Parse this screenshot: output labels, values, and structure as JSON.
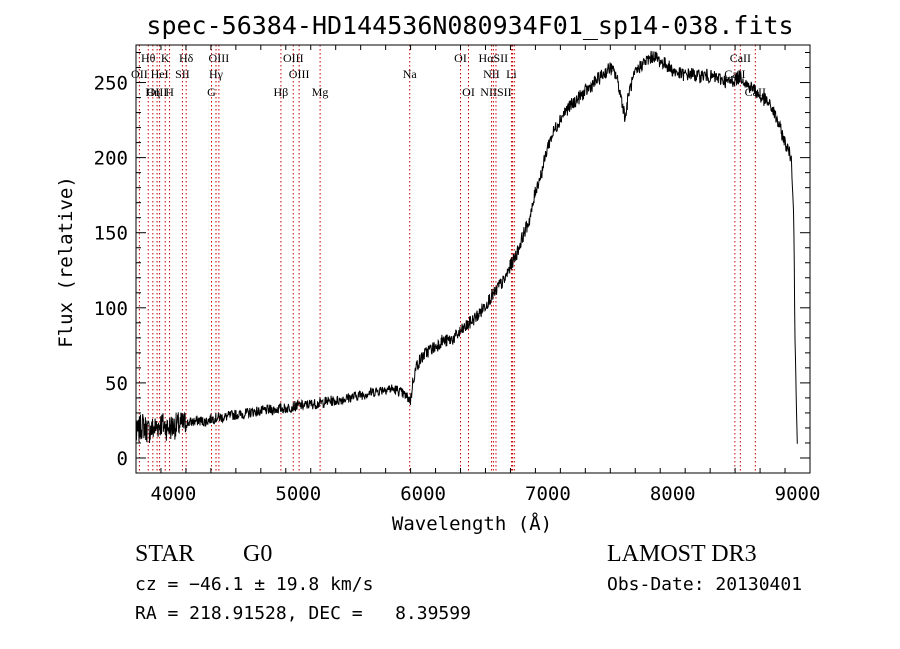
{
  "chart_data": {
    "type": "line",
    "title": "spec-56384-HD144536N080934F01_sp14-038.fits",
    "xlabel": "Wavelength (Å)",
    "ylabel": "Flux (relative)",
    "xlim": [
      3700,
      9100
    ],
    "ylim": [
      -10,
      275
    ],
    "xticks": [
      4000,
      5000,
      6000,
      7000,
      8000,
      9000
    ],
    "yticks": [
      0,
      50,
      100,
      150,
      200,
      250
    ],
    "xtick_labels": [
      "4000",
      "5000",
      "6000",
      "7000",
      "8000",
      "9000"
    ],
    "ytick_labels": [
      "0",
      "50",
      "100",
      "150",
      "200",
      "250"
    ],
    "series": [
      {
        "name": "spectrum",
        "x": [
          3700,
          3750,
          3800,
          3850,
          3900,
          3950,
          4000,
          4050,
          4100,
          4150,
          4200,
          4250,
          4300,
          4350,
          4400,
          4450,
          4500,
          4550,
          4600,
          4650,
          4700,
          4750,
          4800,
          4850,
          4900,
          4950,
          5000,
          5050,
          5100,
          5150,
          5200,
          5250,
          5300,
          5350,
          5400,
          5450,
          5500,
          5550,
          5600,
          5650,
          5700,
          5750,
          5800,
          5850,
          5880,
          5900,
          5920,
          5950,
          6000,
          6050,
          6100,
          6150,
          6200,
          6250,
          6300,
          6350,
          6400,
          6450,
          6500,
          6550,
          6580,
          6600,
          6650,
          6700,
          6750,
          6800,
          6850,
          6880,
          6900,
          6950,
          7000,
          7050,
          7100,
          7150,
          7200,
          7250,
          7300,
          7350,
          7400,
          7450,
          7500,
          7550,
          7600,
          7620,
          7650,
          7700,
          7750,
          7800,
          7850,
          7900,
          7950,
          8000,
          8050,
          8100,
          8150,
          8200,
          8250,
          8300,
          8350,
          8400,
          8450,
          8500,
          8550,
          8600,
          8650,
          8700,
          8750,
          8800,
          8850,
          8900,
          8950,
          8970,
          8980,
          9000
        ],
        "y": [
          15,
          22,
          18,
          20,
          23,
          20,
          21,
          22,
          23,
          24,
          25,
          24,
          26,
          27,
          27,
          28,
          29,
          29,
          30,
          31,
          31,
          32,
          32,
          33,
          33,
          34,
          35,
          35,
          36,
          36,
          37,
          38,
          38,
          39,
          40,
          41,
          42,
          43,
          44,
          45,
          46,
          46,
          45,
          42,
          40,
          38,
          52,
          62,
          68,
          72,
          74,
          78,
          78,
          80,
          84,
          88,
          92,
          96,
          102,
          108,
          110,
          114,
          118,
          128,
          136,
          148,
          158,
          168,
          178,
          190,
          208,
          218,
          226,
          232,
          236,
          240,
          244,
          248,
          252,
          256,
          260,
          254,
          235,
          226,
          244,
          256,
          262,
          265,
          268,
          264,
          262,
          258,
          256,
          255,
          256,
          254,
          255,
          254,
          253,
          252,
          250,
          252,
          254,
          248,
          246,
          240,
          238,
          232,
          222,
          210,
          200,
          160,
          80,
          0
        ]
      }
    ],
    "line_labels": [
      {
        "text": "Hθ",
        "wavelength": 3798
      },
      {
        "text": "K",
        "wavelength": 3934
      },
      {
        "text": "Hδ",
        "wavelength": 4102
      },
      {
        "text": "OIII",
        "wavelength": 4364
      },
      {
        "text": "OIII",
        "wavelength": 4960
      },
      {
        "text": "OI",
        "wavelength": 6300
      },
      {
        "text": "HαSII",
        "wavelength": 6563
      },
      {
        "text": "CaII",
        "wavelength": 8542
      },
      {
        "text": "OII",
        "wavelength": 3727
      },
      {
        "text": "HeI",
        "wavelength": 3889
      },
      {
        "text": "SII",
        "wavelength": 4072
      },
      {
        "text": "Hγ",
        "wavelength": 4341
      },
      {
        "text": "OIII",
        "wavelength": 5007
      },
      {
        "text": "Na",
        "wavelength": 5893
      },
      {
        "text": "NII",
        "wavelength": 6548
      },
      {
        "text": "Li",
        "wavelength": 6708
      },
      {
        "text": "CaII",
        "wavelength": 8498
      },
      {
        "text": "OIII",
        "wavelength": 3869
      },
      {
        "text": "Hη",
        "wavelength": 3835
      },
      {
        "text": "H",
        "wavelength": 3969
      },
      {
        "text": "G",
        "wavelength": 4305
      },
      {
        "text": "Hβ",
        "wavelength": 4861
      },
      {
        "text": "Mg",
        "wavelength": 5175
      },
      {
        "text": "OI",
        "wavelength": 6364
      },
      {
        "text": "NIISII",
        "wavelength": 6584
      },
      {
        "text": "CaII",
        "wavelength": 8662
      }
    ],
    "line_markers": [
      3727,
      3798,
      3835,
      3869,
      3889,
      3934,
      3969,
      4072,
      4102,
      4305,
      4341,
      4364,
      4861,
      4960,
      5007,
      5175,
      5893,
      6300,
      6364,
      6548,
      6563,
      6584,
      6708,
      6717,
      6731,
      8498,
      8542,
      8662
    ]
  },
  "info": {
    "class_label": "STAR",
    "subclass": "G0",
    "survey": "LAMOST DR3",
    "cz": "cz = −46.1 ± 19.8 km/s",
    "obs_date": "Obs-Date: 20130401",
    "coords": "RA = 218.91528, DEC =   8.39599"
  },
  "colors": {
    "marker": "#cc0000",
    "spectrum": "#000000"
  }
}
